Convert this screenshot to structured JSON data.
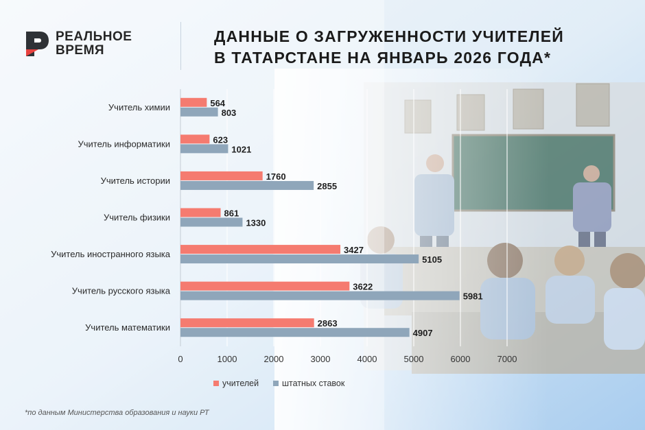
{
  "logo": {
    "line1": "РЕАЛЬНОЕ",
    "line2": "ВРЕМЯ"
  },
  "title": {
    "line1": "ДАННЫЕ О ЗАГРУЖЕННОСТИ УЧИТЕЛЕЙ",
    "line2": "В ТАТАРСТАНЕ НА ЯНВАРЬ 2026 ГОДА*"
  },
  "footnote": "*по данным Министерства образования и науки РТ",
  "colors": {
    "teachers": "#f57b70",
    "positions": "#8fa6ba",
    "logo_red": "#e8423f",
    "logo_dark": "#2f3236"
  },
  "chart_data": {
    "type": "bar",
    "orientation": "horizontal",
    "categories": [
      "Учитель химии",
      "Учитель информатики",
      "Учитель истории",
      "Учитель физики",
      "Учитель иностранного языка",
      "Учитель русского языка",
      "Учитель математики"
    ],
    "series": [
      {
        "name": "учителей",
        "values": [
          564,
          623,
          1760,
          861,
          3427,
          3622,
          2863
        ]
      },
      {
        "name": "штатных ставок",
        "values": [
          803,
          1021,
          2855,
          1330,
          5105,
          5981,
          4907
        ]
      }
    ],
    "xlim": [
      0,
      7000
    ],
    "xticks": [
      0,
      1000,
      2000,
      3000,
      4000,
      5000,
      6000,
      7000
    ],
    "grid": true,
    "legend_position": "bottom",
    "title": "ДАННЫЕ О ЗАГРУЖЕННОСТИ УЧИТЕЛЕЙ В ТАТАРСТАНЕ НА ЯНВАРЬ 2026 ГОДА*"
  }
}
